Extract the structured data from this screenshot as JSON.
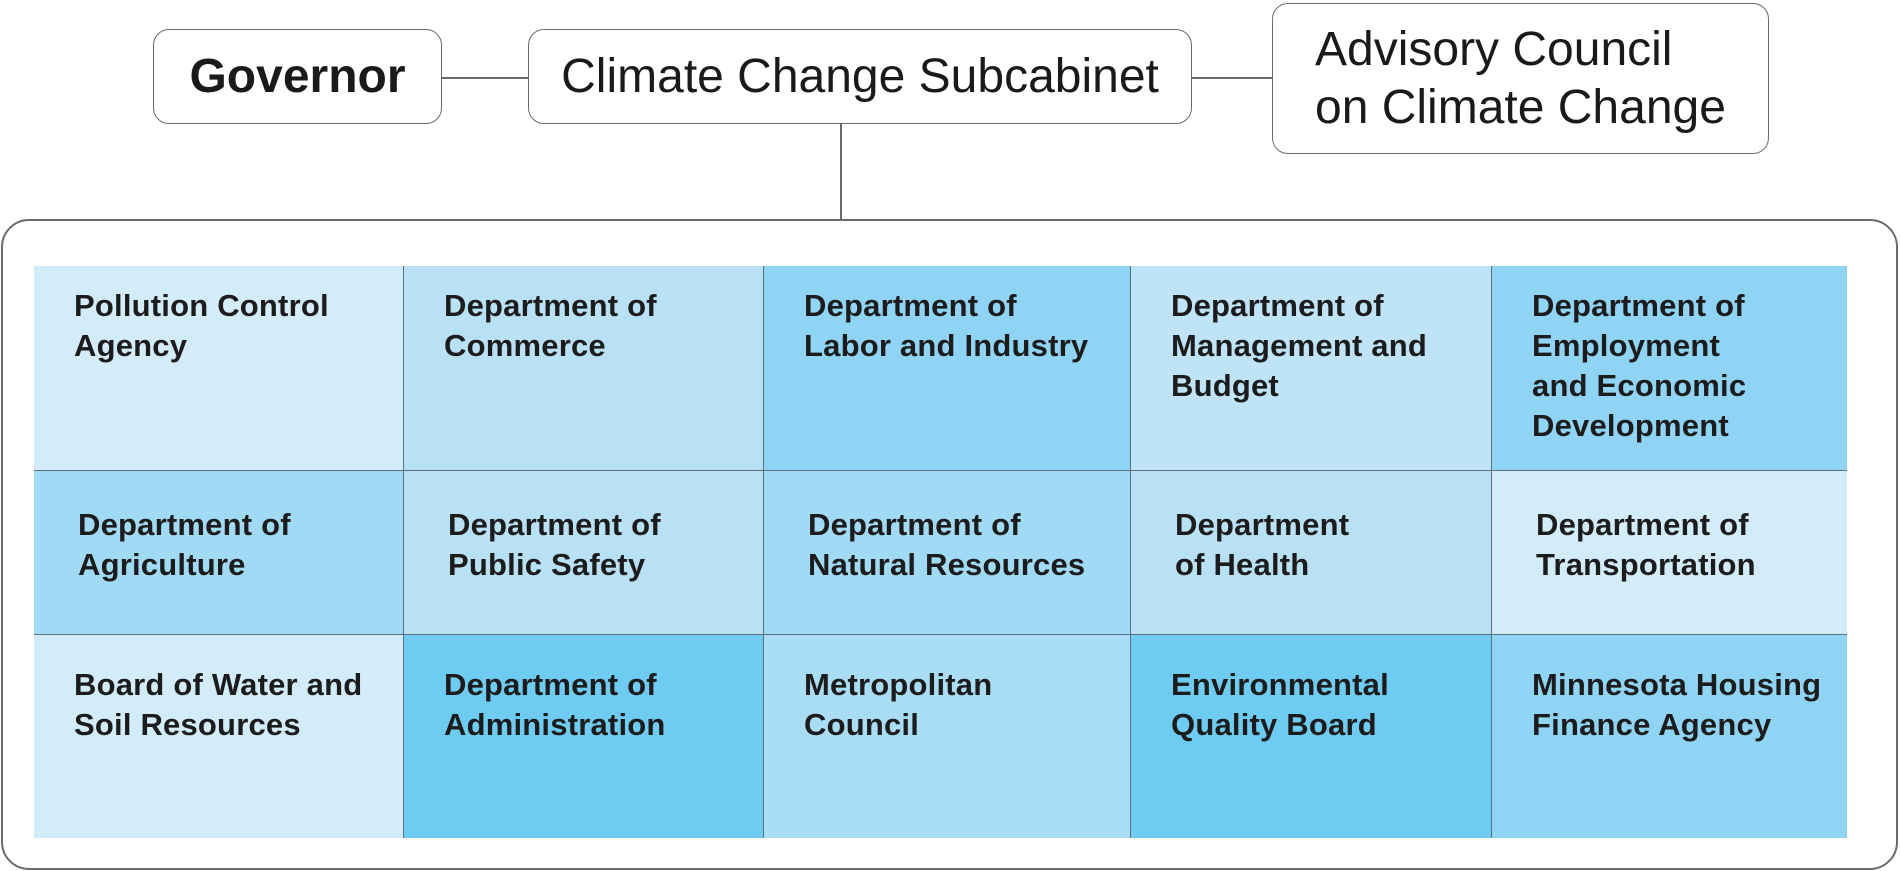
{
  "org_chart": {
    "top_nodes": {
      "governor": "Governor",
      "subcabinet": "Climate Change Subcabinet",
      "advisory": "Advisory Council\non Climate Change"
    },
    "agencies": [
      {
        "label": "Pollution Control\nAgency",
        "color": "#d3ecfa"
      },
      {
        "label": "Department of\nCommerce",
        "color": "#b9e1f6"
      },
      {
        "label": "Department of\nLabor and Industry",
        "color": "#8fd4f4"
      },
      {
        "label": "Department of\nManagement and\nBudget",
        "color": "#bfe3f7"
      },
      {
        "label": "Department of\nEmployment\nand Economic\nDevelopment",
        "color": "#8fd4f4"
      },
      {
        "label": "Department of\nAgriculture",
        "color": "#a1daf5"
      },
      {
        "label": "Department of\nPublic Safety",
        "color": "#b9e1f6"
      },
      {
        "label": "Department of\nNatural Resources",
        "color": "#a1daf5"
      },
      {
        "label": "Department\nof Health",
        "color": "#b9e1f6"
      },
      {
        "label": "Department of\nTransportation",
        "color": "#d3ecfa"
      },
      {
        "label": "Board of Water and\nSoil Resources",
        "color": "#d3ecfa"
      },
      {
        "label": "Department of\nAdministration",
        "color": "#6ecbf1"
      },
      {
        "label": "Metropolitan\nCouncil",
        "color": "#a9ddf6"
      },
      {
        "label": "Environmental\nQuality Board",
        "color": "#6ecbf1"
      },
      {
        "label": "Minnesota Housing\nFinance Agency",
        "color": "#8fd4f4"
      }
    ]
  }
}
